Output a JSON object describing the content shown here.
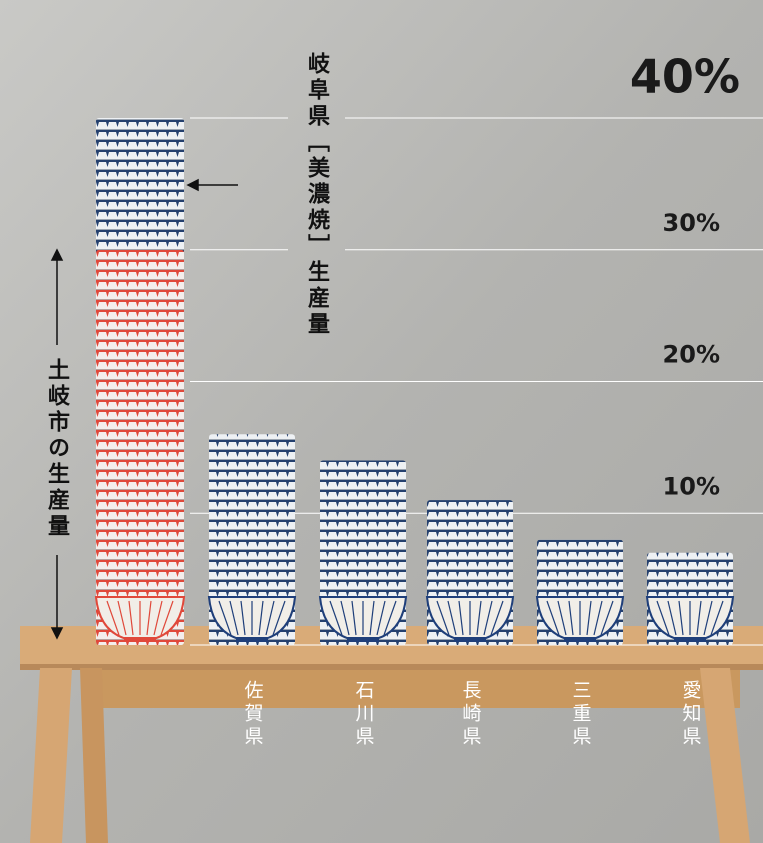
{
  "chart_data": {
    "type": "bar",
    "categories": [
      null,
      "佐賀県",
      "石川県",
      "長崎県",
      "三重県",
      "愛知県"
    ],
    "values": [
      40,
      16,
      14,
      11,
      8,
      7
    ],
    "toki_value": 30,
    "color": "#1f3f7a",
    "toki_color": "#e0483a",
    "gifu_label": "岐阜県［美濃焼］生産量",
    "toki_label": "土岐市の生産量",
    "ylim": [
      0,
      40
    ],
    "yticks": [
      {
        "value": 10,
        "label": "10%"
      },
      {
        "value": 20,
        "label": "20%"
      },
      {
        "value": 30,
        "label": "30%"
      },
      {
        "value": 40,
        "label": "40%"
      }
    ],
    "grid": true
  }
}
